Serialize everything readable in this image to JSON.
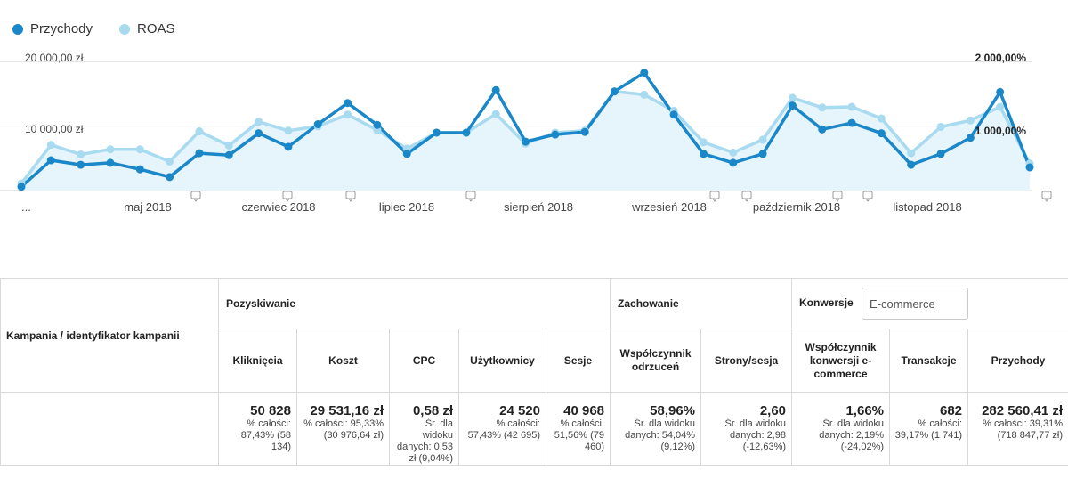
{
  "legend": {
    "series1": {
      "label": "Przychody",
      "color": "#1a87c9"
    },
    "series2": {
      "label": "ROAS",
      "color": "#a8dbf0"
    }
  },
  "chart_data": {
    "type": "line",
    "axis_left": {
      "labels": [
        "20 000,00 zł",
        "10 000,00 zł"
      ],
      "ylim": [
        0,
        22000
      ]
    },
    "axis_right": {
      "labels": [
        "2 000,00%",
        "1 000,00%"
      ],
      "ylim": [
        0,
        2200
      ]
    },
    "x_labels": [
      "...",
      "maj 2018",
      "czerwiec 2018",
      "lipiec 2018",
      "sierpień 2018",
      "wrzesień 2018",
      "październik 2018",
      "listopad 2018"
    ],
    "series": [
      {
        "name": "Przychody",
        "color": "#1a87c9",
        "values": [
          600,
          4700,
          4000,
          4300,
          3300,
          2100,
          5800,
          5500,
          8900,
          6800,
          10300,
          13600,
          10200,
          5700,
          9000,
          9000,
          15600,
          7600,
          8700,
          9100,
          15400,
          18300,
          11800,
          5700,
          4300,
          5700,
          13200,
          9500,
          10500,
          8900,
          4000,
          5700,
          8200,
          15300,
          3600
        ]
      },
      {
        "name": "ROAS",
        "color": "#a8dbf0",
        "values": [
          110,
          710,
          560,
          640,
          640,
          450,
          920,
          700,
          1070,
          930,
          1000,
          1180,
          940,
          650,
          900,
          900,
          1190,
          730,
          900,
          930,
          1540,
          1490,
          1240,
          750,
          590,
          790,
          1440,
          1290,
          1300,
          1120,
          580,
          990,
          1090,
          1300,
          420
        ]
      }
    ],
    "annotation_markers": 9
  },
  "table": {
    "campaign_header": "Kampania / identyfikator kampanii",
    "groups": {
      "acquisition": "Pozyskiwanie",
      "behavior": "Zachowanie",
      "conversions": "Konwersje",
      "conversions_select": "E-commerce"
    },
    "columns": [
      "Kliknięcia",
      "Koszt",
      "CPC",
      "Użytkownicy",
      "Sesje",
      "Współczynnik odrzuceń",
      "Strony/sesja",
      "Współczynnik konwersji e-commerce",
      "Transakcje",
      "Przychody"
    ],
    "totals": [
      {
        "value": "50 828",
        "sub": "% całości: 87,43% (58 134)"
      },
      {
        "value": "29 531,16 zł",
        "sub": "% całości: 95,33% (30 976,64 zł)"
      },
      {
        "value": "0,58 zł",
        "sub": "Śr. dla widoku danych: 0,53 zł (9,04%)"
      },
      {
        "value": "24 520",
        "sub": "% całości: 57,43% (42 695)"
      },
      {
        "value": "40 968",
        "sub": "% całości: 51,56% (79 460)"
      },
      {
        "value": "58,96%",
        "sub": "Śr. dla widoku danych: 54,04% (9,12%)"
      },
      {
        "value": "2,60",
        "sub": "Śr. dla widoku danych: 2,98 (-12,63%)"
      },
      {
        "value": "1,66%",
        "sub": "Śr. dla widoku danych: 2,19% (-24,02%)"
      },
      {
        "value": "682",
        "sub": "% całości: 39,17% (1 741)"
      },
      {
        "value": "282 560,41 zł",
        "sub": "% całości: 39,31% (718 847,77 zł)"
      }
    ]
  }
}
